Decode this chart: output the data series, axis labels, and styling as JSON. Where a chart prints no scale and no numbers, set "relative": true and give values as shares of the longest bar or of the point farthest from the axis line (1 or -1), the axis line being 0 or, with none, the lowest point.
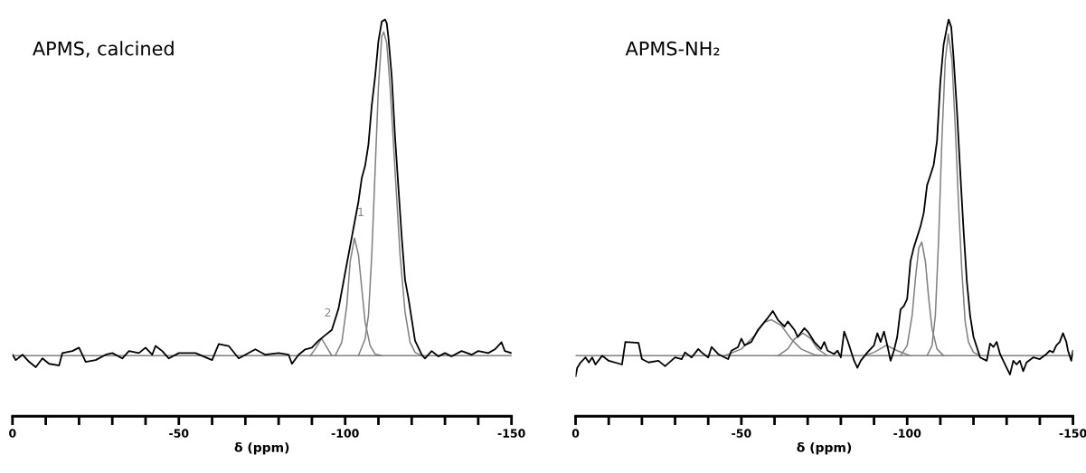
{
  "chart_data": [
    {
      "type": "line",
      "title": "APMS, calcined",
      "xlabel": "δ (ppm)",
      "relative": true,
      "grid": false,
      "legend": false,
      "marker": "none",
      "line_style": "solid",
      "tick_labels": "x",
      "xlim": [
        0,
        -150
      ],
      "xticks": [
        0,
        -50,
        -100,
        -150
      ],
      "annotations": [
        {
          "text": "2",
          "x": -92.9,
          "y": 0.051
        },
        {
          "text": "1",
          "x": -102.8,
          "y": 0.35
        }
      ],
      "series": [
        {
          "color": "#808080",
          "x": [
            0,
            -150
          ],
          "values": [
            0,
            0
          ]
        },
        {
          "color": "#808080",
          "x": [
            -104,
            -106,
            -107,
            -108,
            -109,
            -110,
            -111,
            -111.6,
            -112.5,
            -113.5,
            -115,
            -116.5,
            -118,
            -119.5,
            -121,
            -123
          ],
          "values": [
            0,
            0.05,
            0.12,
            0.3,
            0.55,
            0.8,
            0.95,
            0.963,
            0.93,
            0.8,
            0.55,
            0.3,
            0.13,
            0.04,
            0.01,
            0
          ]
        },
        {
          "color": "#808080",
          "x": [
            -97,
            -99,
            -100.5,
            -101.5,
            -102.8,
            -104,
            -105,
            -106,
            -107.5,
            -109,
            -111
          ],
          "values": [
            0,
            0.04,
            0.15,
            0.28,
            0.35,
            0.3,
            0.2,
            0.1,
            0.03,
            0.005,
            0
          ]
        },
        {
          "color": "#808080",
          "x": [
            -89.5,
            -91,
            -92.9,
            -94.5,
            -96
          ],
          "values": [
            0,
            0.02,
            0.051,
            0.025,
            0
          ]
        },
        {
          "color": "#000000",
          "x": [
            0,
            -1,
            -3,
            -5,
            -7,
            -9,
            -11,
            -14,
            -15,
            -18,
            -20,
            -22,
            -25,
            -28,
            -30,
            -33,
            -35,
            -38,
            -40,
            -42,
            -43,
            -45,
            -47,
            -50,
            -55,
            -60,
            -62,
            -65,
            -68,
            -70,
            -73,
            -76,
            -80,
            -83,
            -84,
            -86,
            -88,
            -90,
            -92,
            -94,
            -96,
            -98,
            -100,
            -102,
            -104,
            -105,
            -106,
            -107,
            -108,
            -109,
            -110,
            -111,
            -112,
            -112.5,
            -113,
            -114,
            -115,
            -116,
            -117,
            -118,
            -119,
            -120,
            -121,
            -122,
            -123,
            -124,
            -126,
            -128,
            -130,
            -132,
            -135,
            -138,
            -140,
            -143,
            -145,
            -147,
            -148,
            -150
          ],
          "values": [
            0.003,
            -0.013,
            0.003,
            -0.018,
            -0.034,
            -0.008,
            -0.024,
            -0.029,
            0.008,
            0.014,
            0.024,
            -0.018,
            -0.013,
            0.003,
            0.008,
            -0.008,
            0.014,
            0.008,
            0.024,
            0.003,
            0.029,
            0.014,
            -0.008,
            0.008,
            0.008,
            -0.013,
            0.035,
            0.029,
            -0.008,
            0.003,
            0.019,
            0.003,
            0.008,
            0.003,
            -0.024,
            0.003,
            0.019,
            0.024,
            0.045,
            0.061,
            0.077,
            0.14,
            0.247,
            0.353,
            0.459,
            0.529,
            0.565,
            0.629,
            0.745,
            0.83,
            0.936,
            0.994,
            1.0,
            0.989,
            0.947,
            0.83,
            0.65,
            0.501,
            0.353,
            0.226,
            0.172,
            0.109,
            0.045,
            0.024,
            0.003,
            -0.008,
            0.014,
            -0.002,
            0.008,
            -0.002,
            0.014,
            0.003,
            0.014,
            0.008,
            0.019,
            0.04,
            0.014,
            0.008
          ]
        }
      ]
    },
    {
      "type": "line",
      "title": "APMS-NH₂",
      "xlabel": "δ (ppm)",
      "relative": true,
      "grid": false,
      "legend": false,
      "marker": "none",
      "line_style": "solid",
      "tick_labels": "x",
      "xlim": [
        0,
        -150
      ],
      "xticks": [
        0,
        -50,
        -100,
        -150
      ],
      "series": [
        {
          "color": "#808080",
          "x": [
            0,
            -150
          ],
          "values": [
            0,
            0
          ]
        },
        {
          "color": "#808080",
          "x": [
            -106,
            -107.5,
            -108.5,
            -109.5,
            -110.5,
            -111.5,
            -112.4,
            -113.5,
            -114.5,
            -115.5,
            -116.5,
            -117.5,
            -118.5,
            -120,
            -122
          ],
          "values": [
            0,
            0.03,
            0.12,
            0.35,
            0.65,
            0.88,
            0.957,
            0.88,
            0.68,
            0.45,
            0.25,
            0.1,
            0.04,
            0.01,
            0
          ]
        },
        {
          "color": "#808080",
          "x": [
            -98,
            -100,
            -101.5,
            -102.5,
            -103.5,
            -104.4,
            -105.5,
            -106.5,
            -107.5,
            -109,
            -111
          ],
          "values": [
            0,
            0.03,
            0.12,
            0.23,
            0.32,
            0.338,
            0.28,
            0.17,
            0.08,
            0.02,
            0
          ]
        },
        {
          "color": "#808080",
          "x": [
            -87,
            -90,
            -93.7,
            -97,
            -101
          ],
          "values": [
            0,
            0.01,
            0.031,
            0.015,
            0
          ]
        },
        {
          "color": "#808080",
          "x": [
            -61,
            -64,
            -66,
            -68.6,
            -71,
            -73,
            -76
          ],
          "values": [
            0,
            0.02,
            0.05,
            0.067,
            0.05,
            0.02,
            0
          ]
        },
        {
          "color": "#808080",
          "x": [
            -45,
            -50,
            -54,
            -57,
            -59.1,
            -62,
            -65,
            -68,
            -72,
            -75
          ],
          "values": [
            0,
            0.02,
            0.06,
            0.1,
            0.107,
            0.09,
            0.05,
            0.02,
            0.003,
            0
          ]
        },
        {
          "color": "#000000",
          "x": [
            0,
            -0.5,
            -1.5,
            -3,
            -4,
            -5,
            -6,
            -8,
            -10,
            -14,
            -15,
            -19,
            -20,
            -22,
            -25,
            -27,
            -30,
            -32,
            -33,
            -35,
            -37,
            -38,
            -40,
            -41,
            -43,
            -45,
            -46,
            -47,
            -49,
            -50,
            -51,
            -53,
            -55,
            -58,
            -59.5,
            -61,
            -63,
            -64,
            -66,
            -67,
            -69,
            -70,
            -72,
            -74,
            -75,
            -76,
            -78,
            -79,
            -80,
            -81,
            -82,
            -84,
            -85,
            -86,
            -88,
            -90,
            -91,
            -92,
            -93,
            -94,
            -95,
            -96,
            -97,
            -98,
            -99,
            -100,
            -101,
            -102,
            -103,
            -104,
            -105,
            -106,
            -107,
            -108,
            -109,
            -110,
            -111,
            -112,
            -112.5,
            -113.3,
            -114,
            -115,
            -116,
            -117,
            -118,
            -119,
            -120,
            -121,
            -122,
            -124,
            -125,
            -126,
            -127,
            -128,
            -130,
            -131,
            -132,
            -133,
            -134,
            -135,
            -136,
            -138,
            -140,
            -142,
            -143,
            -144,
            -145,
            -146,
            -147,
            -148,
            -148.5,
            -149.5,
            -150
          ],
          "values": [
            -0.061,
            -0.036,
            -0.02,
            -0.005,
            -0.02,
            -0.005,
            -0.026,
            0.0,
            -0.015,
            -0.026,
            0.041,
            0.038,
            -0.01,
            -0.02,
            -0.015,
            -0.031,
            -0.005,
            -0.01,
            0.01,
            -0.005,
            0.02,
            0.01,
            -0.005,
            0.026,
            0.005,
            -0.005,
            -0.01,
            0.015,
            0.026,
            0.051,
            0.031,
            0.041,
            0.077,
            0.113,
            0.133,
            0.107,
            0.087,
            0.102,
            0.077,
            0.056,
            0.082,
            0.072,
            0.041,
            0.02,
            0.041,
            0.015,
            0.005,
            0.015,
            -0.005,
            0.072,
            0.046,
            -0.015,
            -0.036,
            -0.015,
            0.01,
            0.031,
            0.067,
            0.041,
            0.072,
            0.031,
            -0.015,
            0.015,
            0.056,
            0.138,
            0.148,
            0.169,
            0.281,
            0.322,
            0.353,
            0.384,
            0.425,
            0.507,
            0.537,
            0.568,
            0.639,
            0.814,
            0.926,
            0.977,
            1.0,
            0.977,
            0.885,
            0.732,
            0.548,
            0.374,
            0.221,
            0.118,
            0.056,
            0.026,
            -0.005,
            -0.015,
            0.036,
            0.026,
            0.041,
            0.005,
            -0.036,
            -0.056,
            -0.015,
            -0.026,
            -0.015,
            -0.046,
            -0.02,
            -0.005,
            -0.01,
            0.005,
            0.015,
            0.01,
            0.031,
            0.041,
            0.067,
            0.041,
            0.015,
            -0.015,
            0.015
          ]
        }
      ]
    }
  ]
}
